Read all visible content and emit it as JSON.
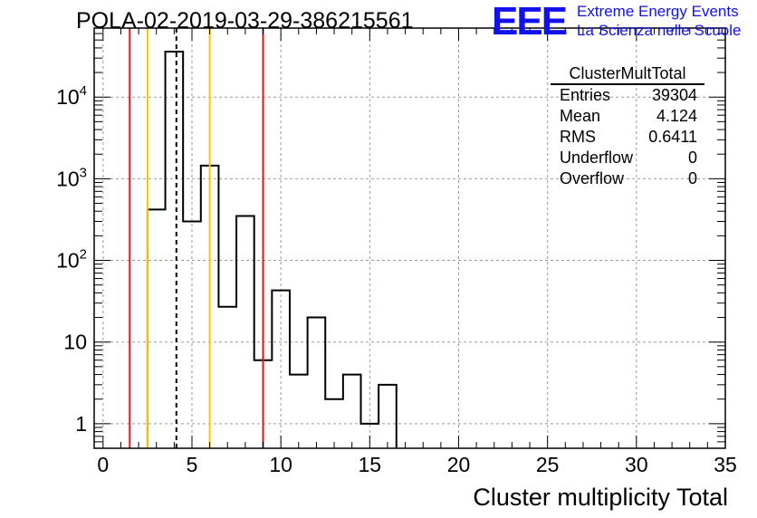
{
  "header": {
    "run_title": "POLA-02-2019-03-29-386215561",
    "logo_text": "EEE",
    "logo_line1": "Extreme Energy Events",
    "logo_line2": "La Scienza nelle Scuole"
  },
  "stats": {
    "name": "ClusterMultTotal",
    "rows": [
      {
        "label": "Entries",
        "value": "39304"
      },
      {
        "label": "Mean",
        "value": "4.124"
      },
      {
        "label": "RMS",
        "value": "0.6411"
      },
      {
        "label": "Underflow",
        "value": "0"
      },
      {
        "label": "Overflow",
        "value": "0"
      }
    ]
  },
  "chart_data": {
    "type": "histogram",
    "title": "POLA-02-2019-03-29-386215561",
    "xlabel": "Cluster multiplicity Total",
    "ylabel": "",
    "y_scale": "log",
    "xlim": [
      -0.5,
      35
    ],
    "ylim": [
      0.5,
      70000
    ],
    "grid": true,
    "bin_width": 1,
    "bin_low_edges": [
      2.5,
      3.5,
      4.5,
      5.5,
      6.5,
      7.5,
      8.5,
      9.5,
      10.5,
      11.5,
      12.5,
      13.5,
      14.5,
      15.5
    ],
    "counts": [
      420,
      36000,
      300,
      1450,
      27,
      350,
      6,
      43,
      4,
      20,
      2,
      4,
      1,
      3
    ],
    "x_ticks": [
      0,
      5,
      10,
      15,
      20,
      25,
      30,
      35
    ],
    "x_tick_labels": [
      "0",
      "5",
      "10",
      "15",
      "20",
      "25",
      "30",
      "35"
    ],
    "y_ticks": [
      1,
      10,
      100,
      1000,
      10000
    ],
    "y_tick_labels": [
      "1",
      "10",
      "10^2",
      "10^3",
      "10^4"
    ],
    "vertical_lines": [
      {
        "x": 1.5,
        "color": "#e8141c",
        "style": "solid"
      },
      {
        "x": 2.5,
        "color": "#f7c600",
        "style": "solid"
      },
      {
        "x": 4.124,
        "color": "#000000",
        "style": "dashed"
      },
      {
        "x": 6.0,
        "color": "#f7c600",
        "style": "solid"
      },
      {
        "x": 9.0,
        "color": "#e8141c",
        "style": "solid"
      }
    ]
  }
}
